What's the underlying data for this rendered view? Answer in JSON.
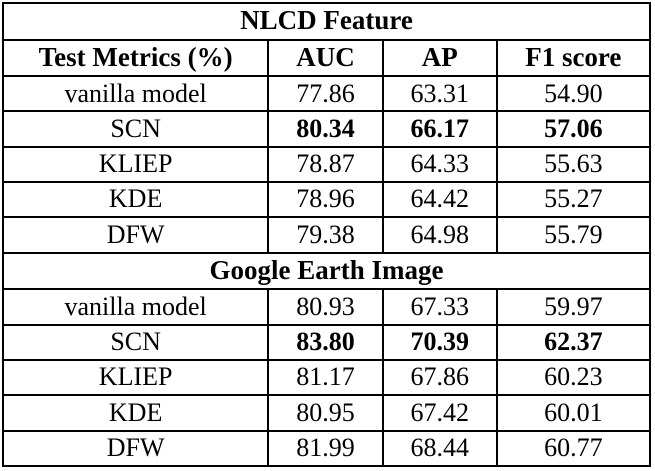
{
  "colors": {
    "border": "#000000",
    "background": "#ffffff",
    "text": "#000000"
  },
  "table": {
    "columns": [
      "Test Metrics (%)",
      "AUC",
      "AP",
      "F1 score"
    ],
    "sections": [
      {
        "title": "NLCD Feature",
        "rows": [
          {
            "label": "vanilla model",
            "values": [
              "77.86",
              "63.31",
              "54.90"
            ],
            "bold": false
          },
          {
            "label": "SCN",
            "values": [
              "80.34",
              "66.17",
              "57.06"
            ],
            "bold": true
          },
          {
            "label": "KLIEP",
            "values": [
              "78.87",
              "64.33",
              "55.63"
            ],
            "bold": false
          },
          {
            "label": "KDE",
            "values": [
              "78.96",
              "64.42",
              "55.27"
            ],
            "bold": false
          },
          {
            "label": "DFW",
            "values": [
              "79.38",
              "64.98",
              "55.79"
            ],
            "bold": false
          }
        ]
      },
      {
        "title": "Google Earth Image",
        "rows": [
          {
            "label": "vanilla model",
            "values": [
              "80.93",
              "67.33",
              "59.97"
            ],
            "bold": false
          },
          {
            "label": "SCN",
            "values": [
              "83.80",
              "70.39",
              "62.37"
            ],
            "bold": true
          },
          {
            "label": "KLIEP",
            "values": [
              "81.17",
              "67.86",
              "60.23"
            ],
            "bold": false
          },
          {
            "label": "KDE",
            "values": [
              "80.95",
              "67.42",
              "60.01"
            ],
            "bold": false
          },
          {
            "label": "DFW",
            "values": [
              "81.99",
              "68.44",
              "60.77"
            ],
            "bold": false
          }
        ]
      }
    ]
  },
  "chart_data": {
    "type": "table",
    "title": "",
    "columns": [
      "Test Metrics (%)",
      "AUC",
      "AP",
      "F1 score"
    ],
    "groups": [
      {
        "group": "NLCD Feature",
        "rows": [
          [
            "vanilla model",
            77.86,
            63.31,
            54.9
          ],
          [
            "SCN",
            80.34,
            66.17,
            57.06
          ],
          [
            "KLIEP",
            78.87,
            64.33,
            55.63
          ],
          [
            "KDE",
            78.96,
            64.42,
            55.27
          ],
          [
            "DFW",
            79.38,
            64.98,
            55.79
          ]
        ]
      },
      {
        "group": "Google Earth Image",
        "rows": [
          [
            "vanilla model",
            80.93,
            67.33,
            59.97
          ],
          [
            "SCN",
            83.8,
            70.39,
            62.37
          ],
          [
            "KLIEP",
            81.17,
            67.86,
            60.23
          ],
          [
            "KDE",
            80.95,
            67.42,
            60.01
          ],
          [
            "DFW",
            81.99,
            68.44,
            60.77
          ]
        ]
      }
    ],
    "bold_rows": [
      "SCN"
    ]
  }
}
